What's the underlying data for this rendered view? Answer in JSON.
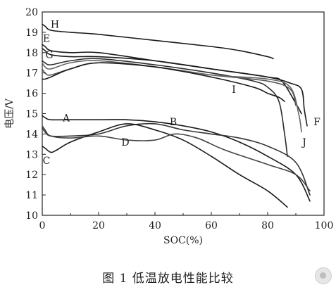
{
  "chart_data": {
    "type": "line",
    "xlabel": "SOC(%)",
    "ylabel": "电压/V",
    "xlim": [
      0,
      100
    ],
    "ylim": [
      10,
      20
    ],
    "x_ticks": [
      0,
      20,
      40,
      60,
      80,
      100
    ],
    "y_ticks": [
      10,
      11,
      12,
      13,
      14,
      15,
      16,
      17,
      18,
      19,
      20
    ],
    "grid": false,
    "series": [
      {
        "name": "H",
        "color": "#1a1a1a",
        "x": [
          0,
          1,
          3,
          10,
          20,
          40,
          60,
          70,
          80,
          82
        ],
        "y": [
          19.4,
          19.3,
          19.1,
          19.0,
          18.9,
          18.6,
          18.3,
          18.1,
          17.8,
          17.7
        ],
        "label_at": [
          4.5,
          19.4
        ]
      },
      {
        "name": "E",
        "color": "#1a1a1a",
        "x": [
          0,
          1,
          3,
          10,
          20,
          40,
          60,
          80,
          85,
          90,
          92
        ],
        "y": [
          18.4,
          18.3,
          18.1,
          18.0,
          18.0,
          17.6,
          17.2,
          16.8,
          16.6,
          15.5,
          15.0
        ],
        "label_at": [
          1.5,
          18.7
        ]
      },
      {
        "name": "G",
        "color": "#2b2b2b",
        "x": [
          0,
          1,
          3,
          10,
          20,
          40,
          60,
          75,
          80,
          84,
          86,
          87
        ],
        "y": [
          17.6,
          17.5,
          17.4,
          17.6,
          17.7,
          17.4,
          17.0,
          16.6,
          16.3,
          15.6,
          14.0,
          12.9
        ],
        "label_at": [
          2.5,
          17.9
        ]
      },
      {
        "name": "",
        "color": "#555555",
        "x": [
          0,
          1,
          3,
          10,
          20,
          40,
          60,
          80,
          88,
          90
        ],
        "y": [
          17.2,
          17.0,
          16.9,
          17.2,
          17.5,
          17.3,
          16.9,
          16.6,
          16.2,
          15.4
        ],
        "label_at": null
      },
      {
        "name": "F",
        "color": "#1a1a1a",
        "x": [
          0,
          1,
          3,
          10,
          20,
          40,
          60,
          80,
          88,
          92,
          93,
          94
        ],
        "y": [
          18.2,
          18.1,
          17.9,
          17.8,
          17.8,
          17.6,
          17.2,
          16.8,
          16.5,
          16.2,
          15.2,
          14.4
        ],
        "label_at": [
          97.5,
          14.6
        ]
      },
      {
        "name": "J",
        "color": "#666666",
        "x": [
          0,
          1,
          3,
          10,
          20,
          40,
          60,
          80,
          88,
          91,
          92
        ],
        "y": [
          17.5,
          17.3,
          17.2,
          17.5,
          17.6,
          17.3,
          16.9,
          16.7,
          16.3,
          15.0,
          14.1
        ],
        "label_at": [
          93.0,
          13.6
        ]
      },
      {
        "name": "I",
        "color": "#1a1a1a",
        "x": [
          0,
          1,
          3,
          10,
          20,
          40,
          60,
          75,
          80,
          84,
          86
        ],
        "y": [
          16.7,
          16.7,
          16.8,
          17.2,
          17.5,
          17.3,
          16.8,
          16.3,
          16.0,
          15.8,
          15.6
        ],
        "label_at": [
          68.0,
          16.2
        ]
      },
      {
        "name": "A",
        "color": "#1a1a1a",
        "x": [
          0,
          1,
          3,
          10,
          20,
          30,
          40,
          50,
          60,
          70,
          80,
          90,
          95
        ],
        "y": [
          14.9,
          14.8,
          14.7,
          14.7,
          14.7,
          14.7,
          14.6,
          14.4,
          14.1,
          13.6,
          12.9,
          12.0,
          10.7
        ],
        "label_at": [
          8.5,
          14.8
        ]
      },
      {
        "name": "B",
        "color": "#333333",
        "x": [
          0,
          1,
          3,
          10,
          20,
          30,
          40,
          50,
          60,
          70,
          80,
          90,
          95
        ],
        "y": [
          14.3,
          14.1,
          13.9,
          13.9,
          14.0,
          14.4,
          14.5,
          14.2,
          14.0,
          13.8,
          13.4,
          12.6,
          11.0
        ],
        "label_at": [
          46.5,
          14.6
        ]
      },
      {
        "name": "C",
        "color": "#1a1a1a",
        "x": [
          0,
          1,
          3,
          5,
          10,
          20,
          30,
          40,
          50,
          60,
          70,
          80,
          87
        ],
        "y": [
          13.4,
          13.3,
          13.1,
          13.2,
          13.6,
          14.1,
          14.5,
          14.2,
          13.7,
          12.9,
          12.0,
          11.2,
          10.4
        ],
        "label_at": [
          1.5,
          12.7
        ]
      },
      {
        "name": "D",
        "color": "#444444",
        "x": [
          0,
          1,
          3,
          10,
          20,
          30,
          40,
          47,
          55,
          65,
          80,
          90,
          95
        ],
        "y": [
          14.4,
          14.2,
          13.9,
          13.8,
          13.9,
          13.7,
          13.7,
          14.0,
          13.8,
          13.2,
          12.5,
          12.0,
          11.2
        ],
        "label_at": [
          29.5,
          13.6
        ]
      }
    ]
  },
  "caption": "图 1    低温放电性能比较"
}
